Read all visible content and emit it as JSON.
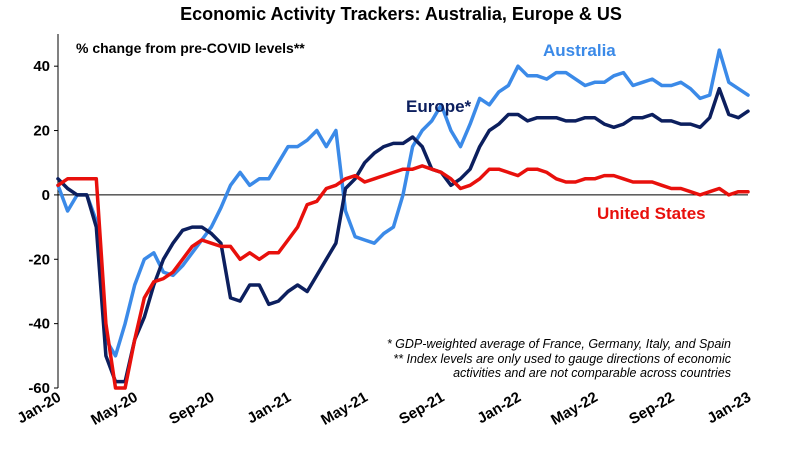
{
  "chart_data": {
    "type": "line",
    "title": "Economic Activity Trackers: Australia, Europe & US",
    "subtitle": "% change from pre-COVID levels**",
    "xlabel": "",
    "ylabel": "",
    "ylim": [
      -60,
      50
    ],
    "yticks": [
      40,
      20,
      0,
      -20,
      -40,
      -60
    ],
    "xtick_labels": [
      "Jan-20",
      "May-20",
      "Sep-20",
      "Jan-21",
      "May-21",
      "Sep-21",
      "Jan-22",
      "May-22",
      "Sep-22",
      "Jan-23"
    ],
    "x_range_months": [
      0,
      36
    ],
    "grid": false,
    "series": [
      {
        "name": "Australia",
        "color": "#3b8ae8",
        "x": [
          0,
          0.5,
          1,
          1.5,
          2,
          2.5,
          3,
          3.5,
          4,
          4.5,
          5,
          5.5,
          6,
          6.5,
          7,
          7.5,
          8,
          8.5,
          9,
          9.5,
          10,
          10.5,
          11,
          11.5,
          12,
          12.5,
          13,
          13.5,
          14,
          14.5,
          15,
          15.5,
          16,
          16.5,
          17,
          17.5,
          18,
          18.5,
          19,
          19.5,
          20,
          20.5,
          21,
          21.5,
          22,
          22.5,
          23,
          23.5,
          24,
          24.5,
          25,
          25.5,
          26,
          26.5,
          27,
          27.5,
          28,
          28.5,
          29,
          29.5,
          30,
          30.5,
          31,
          31.5,
          32,
          32.5,
          33,
          33.5,
          34,
          34.5,
          35,
          35.5,
          36
        ],
        "values": [
          3,
          -5,
          0,
          0,
          -8,
          -45,
          -50,
          -40,
          -28,
          -20,
          -18,
          -24,
          -25,
          -22,
          -18,
          -14,
          -10,
          -4,
          3,
          7,
          3,
          5,
          5,
          10,
          15,
          15,
          17,
          20,
          15,
          20,
          -5,
          -13,
          -14,
          -15,
          -12,
          -10,
          0,
          15,
          20,
          23,
          28,
          20,
          15,
          22,
          30,
          28,
          32,
          34,
          40,
          37,
          37,
          36,
          38,
          38,
          36,
          34,
          35,
          35,
          37,
          38,
          34,
          35,
          36,
          34,
          34,
          35,
          33,
          30,
          31,
          45,
          35,
          33,
          31
        ]
      },
      {
        "name": "Europe*",
        "color": "#0c1f5e",
        "x": [
          0,
          0.5,
          1,
          1.5,
          2,
          2.5,
          3,
          3.5,
          4,
          4.5,
          5,
          5.5,
          6,
          6.5,
          7,
          7.5,
          8,
          8.5,
          9,
          9.5,
          10,
          10.5,
          11,
          11.5,
          12,
          12.5,
          13,
          13.5,
          14,
          14.5,
          15,
          15.5,
          16,
          16.5,
          17,
          17.5,
          18,
          18.5,
          19,
          19.5,
          20,
          20.5,
          21,
          21.5,
          22,
          22.5,
          23,
          23.5,
          24,
          24.5,
          25,
          25.5,
          26,
          26.5,
          27,
          27.5,
          28,
          28.5,
          29,
          29.5,
          30,
          30.5,
          31,
          31.5,
          32,
          32.5,
          33,
          33.5,
          34,
          34.5,
          35,
          35.5,
          36
        ],
        "values": [
          5,
          2,
          0,
          0,
          -10,
          -50,
          -58,
          -58,
          -45,
          -38,
          -28,
          -20,
          -15,
          -11,
          -10,
          -10,
          -12,
          -15,
          -32,
          -33,
          -28,
          -28,
          -34,
          -33,
          -30,
          -28,
          -30,
          -25,
          -20,
          -15,
          2,
          5,
          10,
          13,
          15,
          16,
          16,
          18,
          15,
          8,
          7,
          3,
          5,
          8,
          15,
          20,
          22,
          25,
          25,
          23,
          24,
          24,
          24,
          23,
          23,
          24,
          24,
          22,
          21,
          22,
          24,
          24,
          25,
          23,
          23,
          22,
          22,
          21,
          24,
          33,
          25,
          24,
          26
        ]
      },
      {
        "name": "United States",
        "color": "#e8100c",
        "x": [
          0,
          0.5,
          1,
          1.5,
          2,
          2.5,
          3,
          3.5,
          4,
          4.5,
          5,
          5.5,
          6,
          6.5,
          7,
          7.5,
          8,
          8.5,
          9,
          9.5,
          10,
          10.5,
          11,
          11.5,
          12,
          12.5,
          13,
          13.5,
          14,
          14.5,
          15,
          15.5,
          16,
          16.5,
          17,
          17.5,
          18,
          18.5,
          19,
          19.5,
          20,
          20.5,
          21,
          21.5,
          22,
          22.5,
          23,
          23.5,
          24,
          24.5,
          25,
          25.5,
          26,
          26.5,
          27,
          27.5,
          28,
          28.5,
          29,
          29.5,
          30,
          30.5,
          31,
          31.5,
          32,
          32.5,
          33,
          33.5,
          34,
          34.5,
          35,
          35.5,
          36
        ],
        "values": [
          3,
          5,
          5,
          5,
          5,
          -40,
          -60,
          -60,
          -45,
          -32,
          -27,
          -26,
          -24,
          -20,
          -16,
          -14,
          -15,
          -16,
          -16,
          -20,
          -18,
          -20,
          -18,
          -18,
          -14,
          -10,
          -3,
          -2,
          2,
          3,
          5,
          6,
          4,
          5,
          6,
          7,
          8,
          8,
          9,
          8,
          7,
          5,
          2,
          3,
          5,
          8,
          8,
          7,
          6,
          8,
          8,
          7,
          5,
          4,
          4,
          5,
          5,
          6,
          6,
          5,
          4,
          4,
          4,
          3,
          2,
          2,
          1,
          0,
          1,
          2,
          0,
          1,
          1
        ]
      }
    ],
    "annotations": [
      "* GDP-weighted average of France, Germany, Italy, and Spain",
      "** Index levels are only used to gauge directions of economic",
      "activities and are not comparable across countries"
    ]
  }
}
